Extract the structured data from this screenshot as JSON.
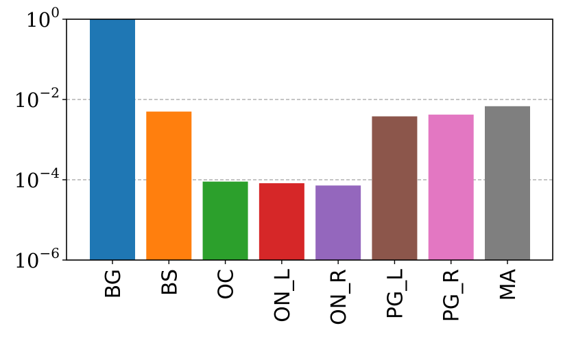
{
  "chart_data": {
    "type": "bar",
    "yscale": "log",
    "ylim": [
      1e-06,
      1
    ],
    "grid": "y-dashed",
    "categories": [
      "BG",
      "BS",
      "OC",
      "ON_L",
      "ON_R",
      "PG_L",
      "PG_R",
      "MA"
    ],
    "values": [
      1.0,
      0.005,
      9e-05,
      8.2e-05,
      7.2e-05,
      0.0038,
      0.0042,
      0.0068
    ],
    "colors": [
      "#1f77b4",
      "#ff7f0e",
      "#2ca02c",
      "#d62728",
      "#9467bd",
      "#8c564b",
      "#e377c2",
      "#7f7f7f"
    ],
    "yticks": [
      {
        "value": 1,
        "base": "10",
        "exp": "0"
      },
      {
        "value": 0.01,
        "base": "10",
        "exp": "−2"
      },
      {
        "value": 0.0001,
        "base": "10",
        "exp": "−4"
      },
      {
        "value": 1e-06,
        "base": "10",
        "exp": "−6"
      }
    ],
    "title": "",
    "xlabel": "",
    "ylabel": ""
  }
}
